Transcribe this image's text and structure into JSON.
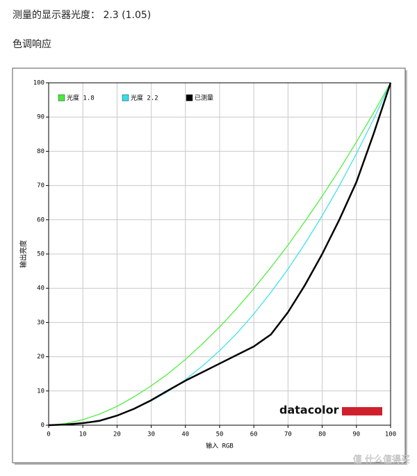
{
  "header": {
    "measured": "测量的显示器光度： 2.3 (1.05)",
    "section": "色调响应"
  },
  "chart_data": {
    "type": "line",
    "x": [
      0,
      5,
      10,
      15,
      20,
      25,
      30,
      35,
      40,
      45,
      50,
      55,
      60,
      65,
      70,
      75,
      80,
      85,
      90,
      95,
      100
    ],
    "series": [
      {
        "name": "光度 1.8",
        "color": "#44ee33",
        "values": [
          0,
          0.5,
          1.6,
          3.3,
          5.5,
          8.3,
          11.5,
          15.1,
          19.2,
          23.8,
          28.7,
          34.1,
          39.9,
          46.1,
          52.6,
          59.6,
          66.9,
          74.6,
          82.7,
          91.2,
          100
        ]
      },
      {
        "name": "光度 2.2",
        "color": "#33e0e8",
        "values": [
          0,
          0.1,
          0.6,
          1.5,
          2.9,
          4.7,
          7.1,
          9.9,
          13.3,
          17.3,
          21.8,
          26.8,
          32.5,
          38.8,
          45.6,
          53.1,
          61.2,
          69.9,
          79.3,
          89.3,
          100
        ]
      },
      {
        "name": "已测量",
        "color": "#000000",
        "values": [
          0,
          0.2,
          0.6,
          1.3,
          2.8,
          4.8,
          7.3,
          10.2,
          13,
          15.5,
          18,
          20.5,
          23,
          26.5,
          33,
          41,
          50,
          60,
          71,
          85,
          100
        ]
      }
    ],
    "xlabel": "输入 RGB",
    "ylabel": "输出亮度",
    "xlim": [
      0,
      100
    ],
    "ylim": [
      0,
      100
    ],
    "xticks": [
      0,
      10,
      20,
      30,
      40,
      50,
      60,
      70,
      80,
      90,
      100
    ],
    "yticks": [
      0,
      10,
      20,
      30,
      40,
      50,
      60,
      70,
      80,
      90,
      100
    ],
    "grid": true,
    "legend": "top-left",
    "logo": "datacolor"
  },
  "watermark": "值 什么值得买"
}
